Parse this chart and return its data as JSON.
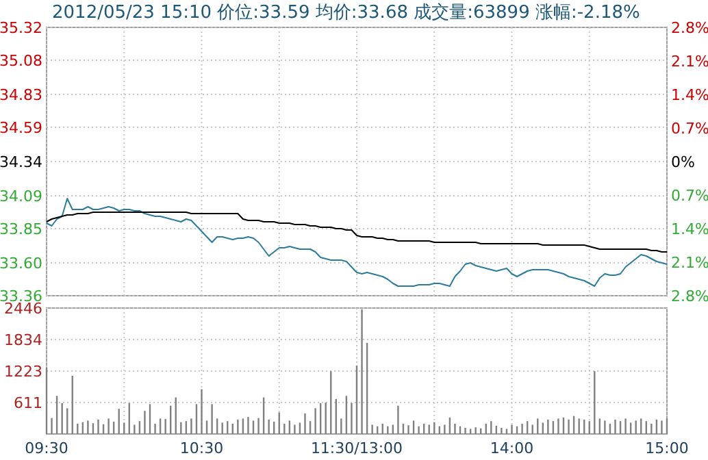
{
  "chart_data": [
    {
      "type": "line",
      "title": "2012/05/23  15:10  价位:33.59  均价:33.68  成交量:63899  涨幅:-2.18%",
      "categories": [
        null,
        null,
        null,
        null,
        null,
        null,
        null,
        null,
        null,
        null,
        null,
        null,
        null,
        null,
        null,
        null,
        null,
        null,
        null,
        null,
        null,
        null,
        null,
        null,
        null,
        null,
        null,
        null,
        null,
        null,
        null,
        null,
        null,
        null,
        null,
        null,
        null,
        null,
        null,
        null,
        null,
        null,
        null,
        null,
        null,
        null,
        null,
        null,
        null,
        null,
        null,
        null,
        null,
        null,
        null,
        null,
        null,
        null,
        null,
        null,
        null,
        null,
        null,
        null,
        null,
        null,
        null,
        null,
        null,
        null,
        null,
        null,
        null,
        null,
        null,
        null,
        null,
        null,
        null,
        null,
        null,
        null,
        null,
        null,
        null,
        null,
        null,
        null,
        null,
        null,
        null,
        null,
        null,
        null,
        null,
        null,
        null,
        null,
        null,
        null,
        null,
        null,
        null,
        null,
        null,
        null,
        null,
        null,
        null,
        null,
        null,
        null,
        null,
        null,
        null,
        null,
        null,
        null,
        null,
        null,
        null
      ],
      "ylim": [
        33.36,
        35.32
      ],
      "yticks": [
        33.36,
        {
          "value": 33.6,
          "label": "33.60"
        },
        33.85,
        34.09,
        34.34,
        34.59,
        34.83,
        35.08,
        35.32
      ],
      "y2lim": [
        -2.8,
        2.8
      ],
      "y2ticks": [
        {
          "value": -2.8,
          "label": "2.8%"
        },
        {
          "value": -2.1,
          "label": "2.1%"
        },
        {
          "value": -1.4,
          "label": "1.4%"
        },
        {
          "value": -0.7,
          "label": "0.7%"
        },
        {
          "value": 0,
          "label": "0%"
        },
        {
          "value": 0.7,
          "label": "0.7%"
        },
        {
          "value": 1.4,
          "label": "1.4%"
        },
        {
          "value": 2.1,
          "label": "2.1%"
        },
        {
          "value": 2.8,
          "label": "2.8%"
        }
      ],
      "grid": true,
      "tick_labels": "y",
      "series": [
        {
          "color": "#2b7c9c",
          "values": [
            33.89,
            33.87,
            33.92,
            33.94,
            34.07,
            33.99,
            33.99,
            33.99,
            34.01,
            33.99,
            33.99,
            34.0,
            34.01,
            34.0,
            33.98,
            33.99,
            33.99,
            33.98,
            33.98,
            33.96,
            33.95,
            33.94,
            33.94,
            33.93,
            33.92,
            33.91,
            33.9,
            33.92,
            33.91,
            33.87,
            33.83,
            33.79,
            33.75,
            33.79,
            33.79,
            33.78,
            33.77,
            33.78,
            33.78,
            33.79,
            33.78,
            33.75,
            33.7,
            33.65,
            33.68,
            33.71,
            33.71,
            33.72,
            33.71,
            33.7,
            33.7,
            33.7,
            33.68,
            33.64,
            33.63,
            33.62,
            33.62,
            33.62,
            33.61,
            33.57,
            33.53,
            33.52,
            33.53,
            33.52,
            33.51,
            33.5,
            33.48,
            33.45,
            33.43,
            33.43,
            33.43,
            33.43,
            33.44,
            33.44,
            33.44,
            33.45,
            33.45,
            33.44,
            33.43,
            33.5,
            33.54,
            33.59,
            33.6,
            33.58,
            33.57,
            33.56,
            33.55,
            33.54,
            33.55,
            33.56,
            33.52,
            33.5,
            33.52,
            33.54,
            33.55,
            33.55,
            33.55,
            33.55,
            33.54,
            33.53,
            33.52,
            33.5,
            33.49,
            33.48,
            33.47,
            33.45,
            33.43,
            33.49,
            33.52,
            33.51,
            33.51,
            33.52,
            33.57,
            33.6,
            33.63,
            33.66,
            33.65,
            33.63,
            33.61,
            33.6,
            33.59
          ]
        },
        {
          "color": "#000000",
          "values": [
            33.9,
            33.92,
            33.93,
            33.94,
            33.95,
            33.95,
            33.96,
            33.96,
            33.96,
            33.97,
            33.97,
            33.97,
            33.97,
            33.97,
            33.97,
            33.97,
            33.97,
            33.97,
            33.97,
            33.97,
            33.97,
            33.97,
            33.97,
            33.97,
            33.97,
            33.97,
            33.97,
            33.97,
            33.96,
            33.96,
            33.96,
            33.96,
            33.96,
            33.96,
            33.96,
            33.96,
            33.96,
            33.96,
            33.92,
            33.91,
            33.91,
            33.91,
            33.9,
            33.9,
            33.9,
            33.89,
            33.89,
            33.89,
            33.88,
            33.88,
            33.88,
            33.87,
            33.87,
            33.86,
            33.86,
            33.86,
            33.85,
            33.85,
            33.84,
            33.84,
            33.8,
            33.79,
            33.79,
            33.79,
            33.78,
            33.78,
            33.77,
            33.77,
            33.76,
            33.76,
            33.76,
            33.76,
            33.76,
            33.76,
            33.76,
            33.75,
            33.75,
            33.75,
            33.75,
            33.75,
            33.75,
            33.75,
            33.75,
            33.75,
            33.74,
            33.74,
            33.74,
            33.74,
            33.74,
            33.74,
            33.74,
            33.74,
            33.74,
            33.74,
            33.74,
            33.74,
            33.73,
            33.73,
            33.73,
            33.73,
            33.73,
            33.73,
            33.73,
            33.73,
            33.73,
            33.72,
            33.71,
            33.7,
            33.7,
            33.7,
            33.7,
            33.7,
            33.7,
            33.7,
            33.7,
            33.7,
            33.7,
            33.69,
            33.69,
            33.68,
            33.68
          ]
        }
      ]
    },
    {
      "type": "bar",
      "categories": [
        "09:30",
        null,
        null,
        null,
        null,
        null,
        null,
        null,
        null,
        null,
        null,
        null,
        null,
        null,
        null,
        null,
        null,
        null,
        null,
        null,
        null,
        null,
        null,
        null,
        null,
        null,
        null,
        null,
        null,
        null,
        "10:30",
        null,
        null,
        null,
        null,
        null,
        null,
        null,
        null,
        null,
        null,
        null,
        null,
        null,
        null,
        null,
        null,
        null,
        null,
        null,
        null,
        null,
        null,
        null,
        null,
        null,
        null,
        null,
        null,
        null,
        "11:30/13:00",
        null,
        null,
        null,
        null,
        null,
        null,
        null,
        null,
        null,
        null,
        null,
        null,
        null,
        null,
        null,
        null,
        null,
        null,
        null,
        null,
        null,
        null,
        null,
        null,
        null,
        null,
        null,
        null,
        null,
        "14:00",
        null,
        null,
        null,
        null,
        null,
        null,
        null,
        null,
        null,
        null,
        null,
        null,
        null,
        null,
        null,
        null,
        null,
        null,
        null,
        null,
        null,
        null,
        null,
        null,
        null,
        null,
        null,
        null,
        null,
        "15:00"
      ],
      "ylim": [
        0,
        2446
      ],
      "yticks": [
        611,
        1223,
        1834,
        2446
      ],
      "grid": true,
      "series": [
        {
          "color": "#808080",
          "values": [
            1290,
            310,
            740,
            600,
            500,
            1130,
            200,
            230,
            260,
            210,
            280,
            190,
            300,
            240,
            490,
            220,
            600,
            180,
            250,
            450,
            580,
            200,
            300,
            290,
            550,
            710,
            230,
            250,
            300,
            580,
            870,
            260,
            580,
            300,
            220,
            250,
            200,
            280,
            300,
            330,
            260,
            310,
            710,
            280,
            240,
            420,
            200,
            260,
            180,
            220,
            400,
            250,
            500,
            600,
            610,
            1220,
            680,
            300,
            740,
            600,
            1330,
            2420,
            1770,
            180,
            150,
            200,
            150,
            180,
            550,
            200,
            170,
            260,
            150,
            200,
            180,
            230,
            150,
            180,
            320,
            200,
            150,
            120,
            100,
            130,
            110,
            200,
            250,
            160,
            120,
            100,
            180,
            150,
            200,
            250,
            180,
            300,
            220,
            280,
            250,
            300,
            320,
            280,
            350,
            300,
            280,
            250,
            1220,
            300,
            260,
            200,
            280,
            250,
            300,
            220,
            260,
            300,
            250,
            200,
            280,
            260,
            300
          ]
        }
      ]
    }
  ]
}
